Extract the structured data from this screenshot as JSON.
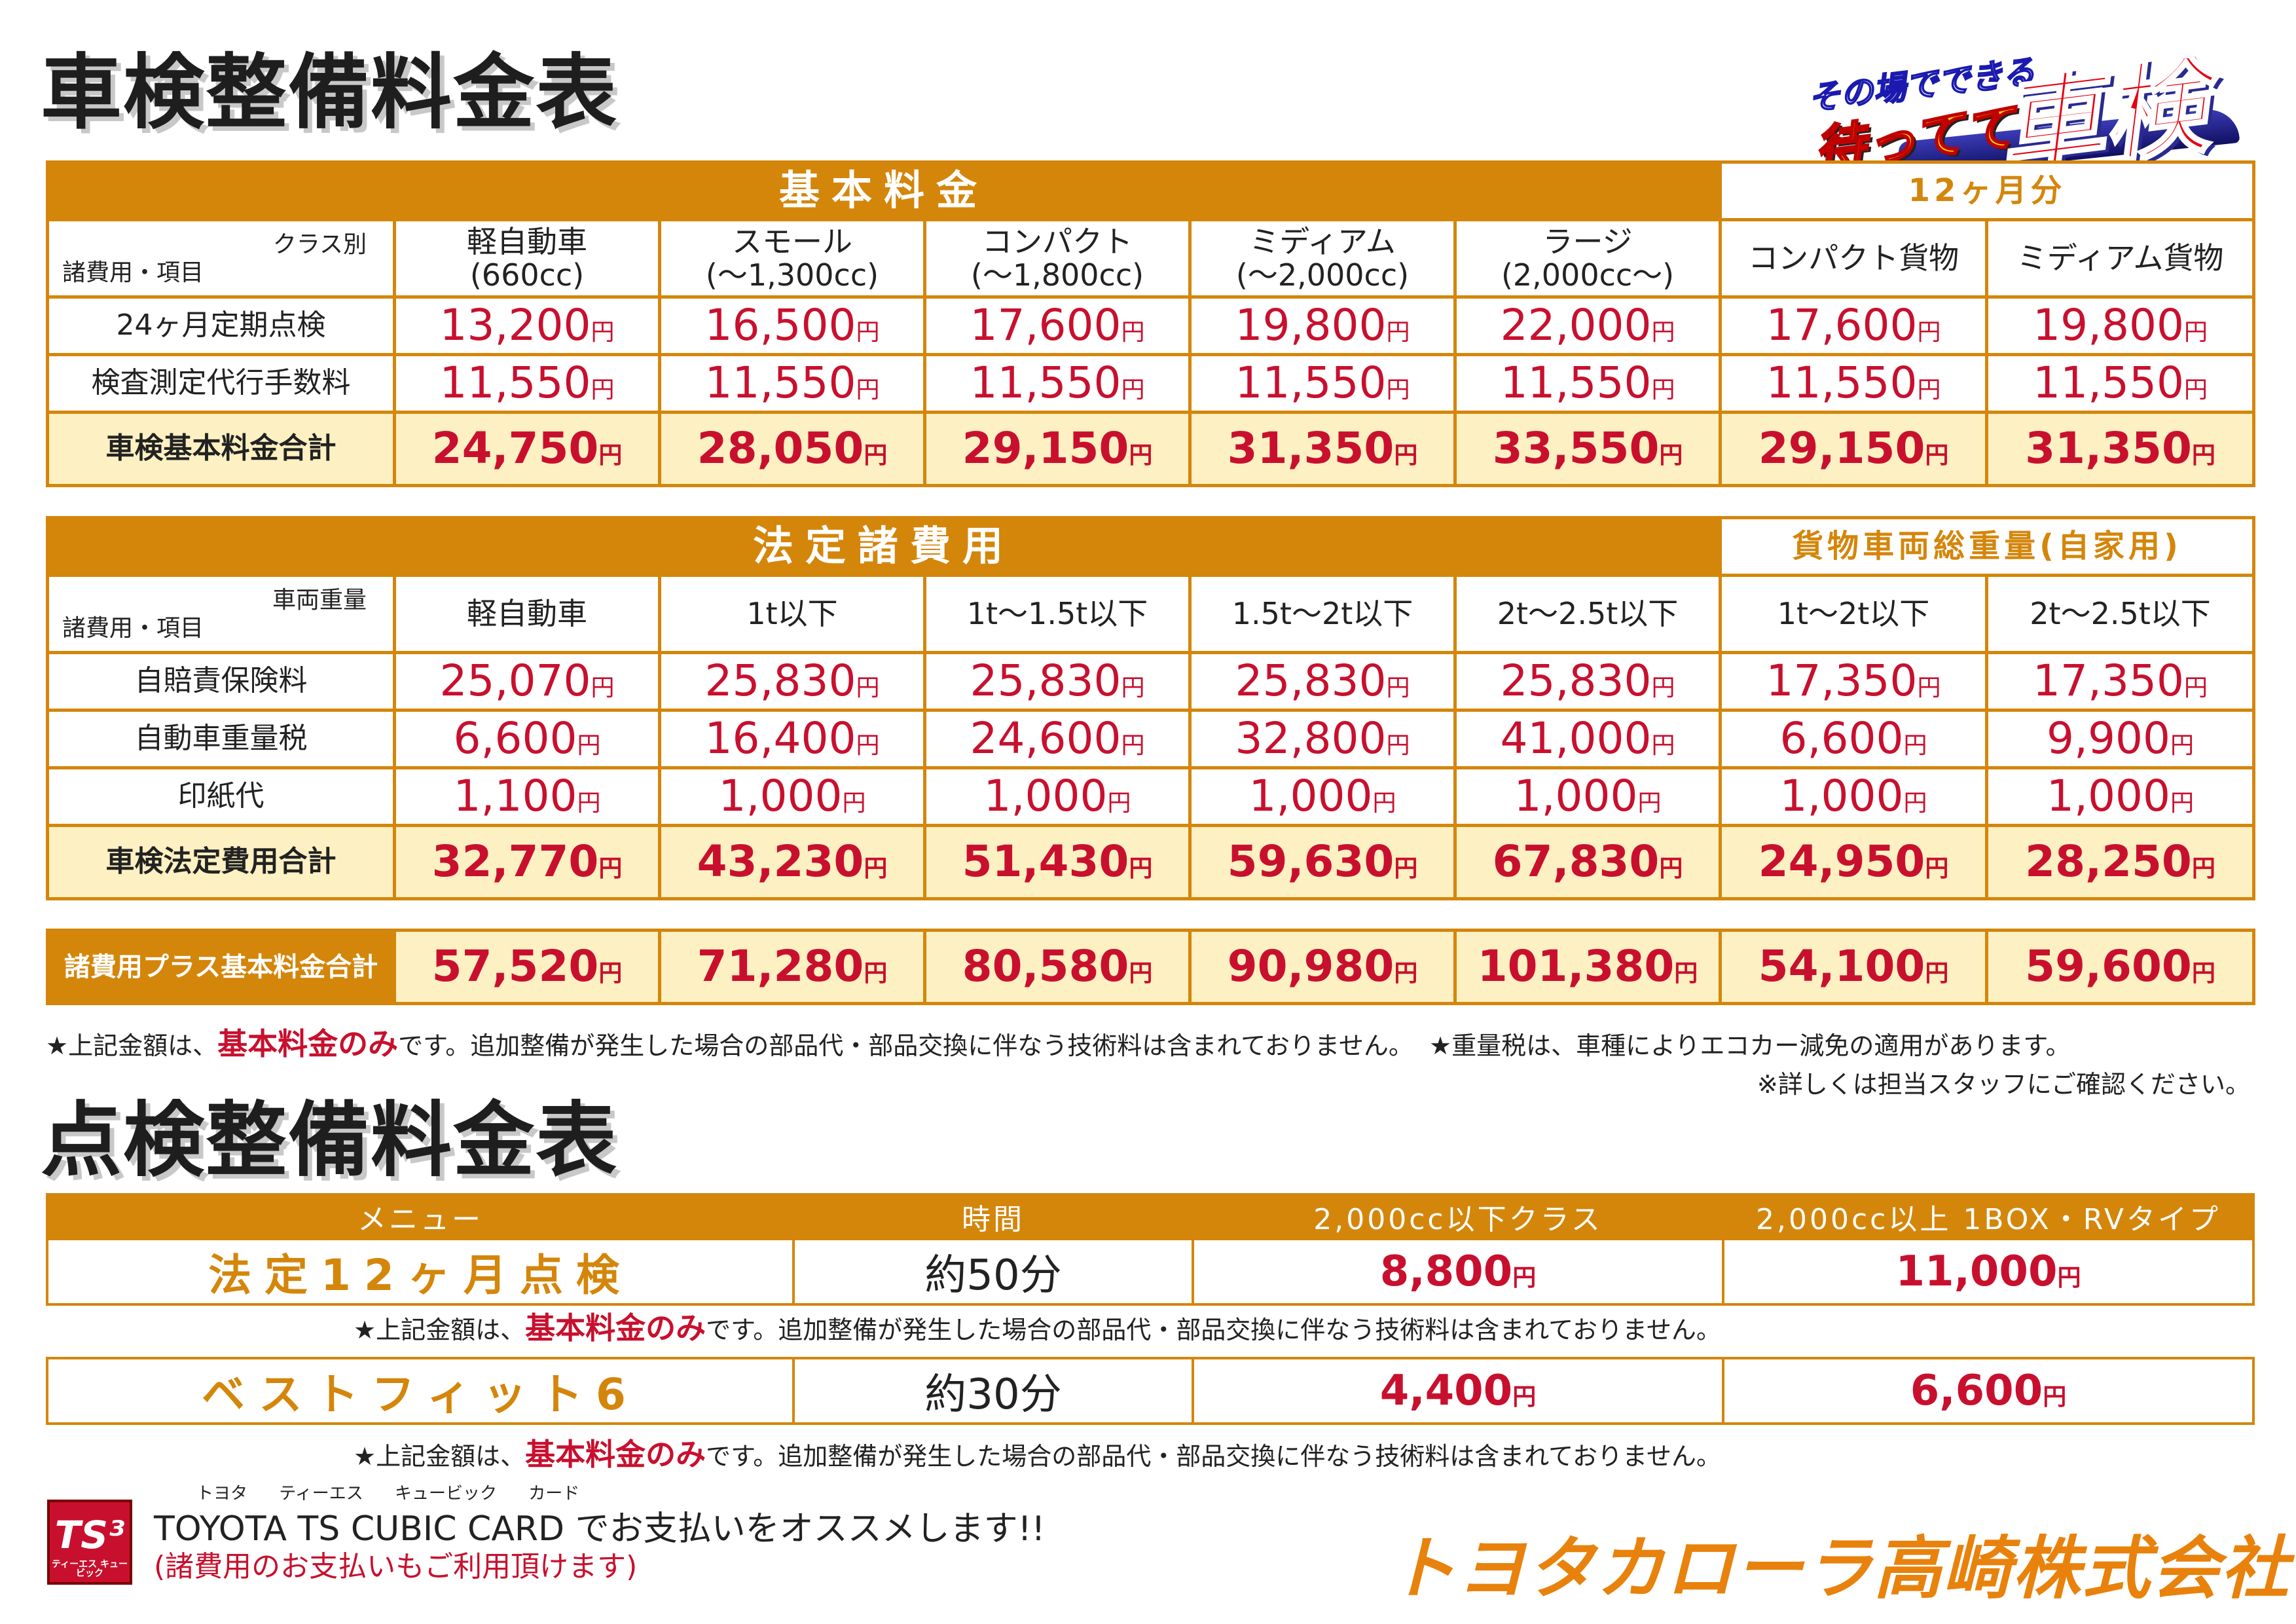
{
  "titles": {
    "shaken": "車検整備料金表",
    "tenken": "点検整備料金表"
  },
  "badge": {
    "tagline": "その場でできる",
    "tagline2": "待ってて",
    "big": "車検"
  },
  "yen": "円",
  "basic": {
    "header": "基本料金",
    "header_12": "12ヶ月分",
    "corner_top": "クラス別",
    "corner_bottom": "諸費用・項目",
    "classes": [
      [
        "軽自動車",
        "(660cc)"
      ],
      [
        "スモール",
        "(〜1,300cc)"
      ],
      [
        "コンパクト",
        "(〜1,800cc)"
      ],
      [
        "ミディアム",
        "(〜2,000cc)"
      ],
      [
        "ラージ",
        "(2,000cc〜)"
      ],
      [
        "コンパクト貨物",
        ""
      ],
      [
        "ミディアム貨物",
        ""
      ]
    ],
    "rows": [
      {
        "label": "24ヶ月定期点検",
        "values": [
          "13,200",
          "16,500",
          "17,600",
          "19,800",
          "22,000",
          "17,600",
          "19,800"
        ]
      },
      {
        "label": "検査測定代行手数料",
        "values": [
          "11,550",
          "11,550",
          "11,550",
          "11,550",
          "11,550",
          "11,550",
          "11,550"
        ]
      }
    ],
    "total": {
      "label": "車検基本料金合計",
      "values": [
        "24,750",
        "28,050",
        "29,150",
        "31,350",
        "33,550",
        "29,150",
        "31,350"
      ]
    }
  },
  "legal": {
    "header": "法定諸費用",
    "header_truck": "貨物車両総重量(自家用)",
    "corner_top": "車両重量",
    "corner_bottom": "諸費用・項目",
    "classes": [
      "軽自動車",
      "1t以下",
      "1t〜1.5t以下",
      "1.5t〜2t以下",
      "2t〜2.5t以下",
      "1t〜2t以下",
      "2t〜2.5t以下"
    ],
    "rows": [
      {
        "label": "自賠責保険料",
        "values": [
          "25,070",
          "25,830",
          "25,830",
          "25,830",
          "25,830",
          "17,350",
          "17,350"
        ]
      },
      {
        "label": "自動車重量税",
        "values": [
          "6,600",
          "16,400",
          "24,600",
          "32,800",
          "41,000",
          "6,600",
          "9,900"
        ]
      },
      {
        "label": "印紙代",
        "values": [
          "1,100",
          "1,000",
          "1,000",
          "1,000",
          "1,000",
          "1,000",
          "1,000"
        ]
      }
    ],
    "total": {
      "label": "車検法定費用合計",
      "values": [
        "32,770",
        "43,230",
        "51,430",
        "59,630",
        "67,830",
        "24,950",
        "28,250"
      ]
    }
  },
  "grand": {
    "label": "諸費用プラス基本料金合計",
    "values": [
      "57,520",
      "71,280",
      "80,580",
      "90,980",
      "101,380",
      "54,100",
      "59,600"
    ]
  },
  "notes": {
    "n1_pre": "★上記金額は、",
    "n1_em": "基本料金のみ",
    "n1_post": "です。追加整備が発生した場合の部品代・部品交換に伴なう技術料は含まれておりません。",
    "n2": "★重量税は、車種によりエコカー減免の適用があります。",
    "n3": "※詳しくは担当スタッフにご確認ください。"
  },
  "tenken": {
    "headers": [
      "メニュー",
      "時間",
      "2,000cc以下クラス",
      "2,000cc以上 1BOX・RVタイプ"
    ],
    "items": [
      {
        "name": "法定12ヶ月点検",
        "time": "約50分",
        "price1": "8,800",
        "price2": "11,000"
      },
      {
        "name": "ベストフィット6",
        "time": "約30分",
        "price1": "4,400",
        "price2": "6,600"
      }
    ]
  },
  "footer": {
    "logo": "TS³",
    "logo_sub": "ティーエス キュービック",
    "ruby": "トヨタ ティーエス キュービック カード",
    "card_line": "TOYOTA TS CUBIC CARD でお支払いをオススメします!!",
    "card_sub": "(諸費用のお支払いもご利用頂けます)",
    "company": "トヨタカローラ高崎株式会社"
  }
}
